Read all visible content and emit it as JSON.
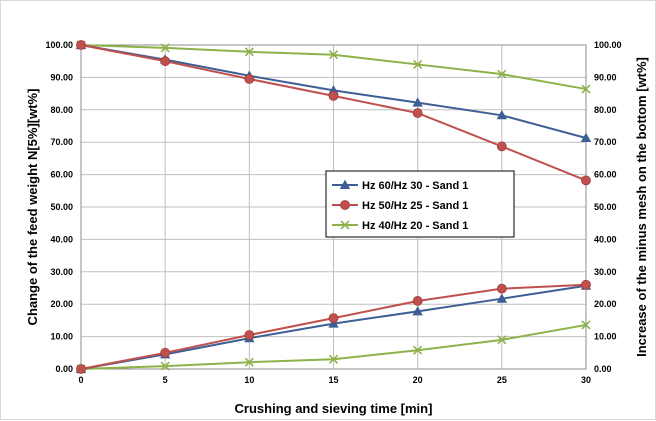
{
  "chart_data": {
    "type": "line",
    "xlabel": "Crushing and sieving time [min]",
    "ylabel": "Change of the feed weight N[5%][wt%]",
    "ylabel_right": "Increase of the minus mesh on the bottom [wt%]",
    "x": [
      0,
      5,
      10,
      15,
      20,
      25,
      30
    ],
    "xlim": [
      0,
      30
    ],
    "ylim": [
      0,
      100
    ],
    "ylim_right": [
      0,
      100
    ],
    "x_ticks": [
      "0",
      "5",
      "10",
      "15",
      "20",
      "25",
      "30"
    ],
    "y_ticks": [
      "0.00",
      "10.00",
      "20.00",
      "30.00",
      "40.00",
      "50.00",
      "60.00",
      "70.00",
      "80.00",
      "90.00",
      "100.00"
    ],
    "y_ticks_right": [
      "0.00",
      "10.00",
      "20.00",
      "30.00",
      "40.00",
      "50.00",
      "60.00",
      "70.00",
      "80.00",
      "90.00",
      "100.00"
    ],
    "grid": true,
    "legend_position": "center",
    "series": [
      {
        "name": "Hz 60/Hz 30 - Sand 1",
        "color": "#3e5f95",
        "marker": "triangle",
        "values": [
          100.0,
          95.5,
          90.5,
          86.0,
          82.2,
          78.3,
          71.3
        ]
      },
      {
        "color": "#3e5f95",
        "marker": "triangle",
        "values": [
          0.0,
          4.5,
          9.5,
          14.0,
          17.8,
          21.7,
          25.7
        ]
      },
      {
        "name": "Hz 50/Hz 25 - Sand 1",
        "color": "#c0504d",
        "marker": "circle",
        "values": [
          100.0,
          95.0,
          89.5,
          84.3,
          79.0,
          68.7,
          58.2
        ]
      },
      {
        "color": "#c0504d",
        "marker": "circle",
        "values": [
          0.0,
          5.0,
          10.5,
          15.7,
          21.0,
          24.8,
          26.0
        ]
      },
      {
        "name": "Hz 40/Hz 20 - Sand 1",
        "color": "#8db24a",
        "marker": "x",
        "values": [
          100.0,
          99.1,
          97.9,
          97.0,
          94.0,
          91.0,
          86.4
        ]
      },
      {
        "color": "#8db24a",
        "marker": "x",
        "values": [
          0.0,
          0.9,
          2.1,
          3.0,
          5.8,
          9.0,
          13.6
        ]
      }
    ]
  }
}
